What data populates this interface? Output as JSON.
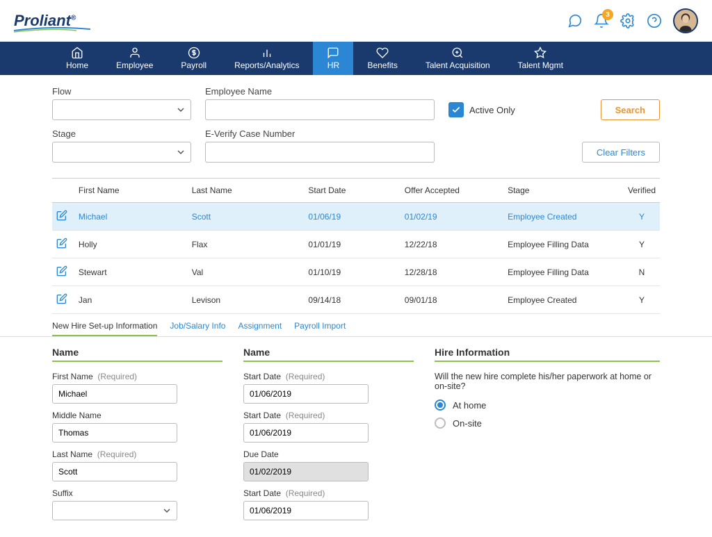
{
  "header": {
    "logo": "Proliant",
    "notification_count": "3"
  },
  "nav": [
    {
      "label": "Home"
    },
    {
      "label": "Employee"
    },
    {
      "label": "Payroll"
    },
    {
      "label": "Reports/Analytics"
    },
    {
      "label": "HR"
    },
    {
      "label": "Benefits"
    },
    {
      "label": "Talent Acquisition"
    },
    {
      "label": "Talent Mgmt"
    }
  ],
  "filters": {
    "flow_label": "Flow",
    "employee_name_label": "Employee Name",
    "active_only_label": "Active Only",
    "stage_label": "Stage",
    "everify_label": "E-Verify Case Number",
    "search_btn": "Search",
    "clear_btn": "Clear Filters"
  },
  "table": {
    "headers": {
      "first_name": "First Name",
      "last_name": "Last Name",
      "start_date": "Start Date",
      "offer_accepted": "Offer Accepted",
      "stage": "Stage",
      "verified": "Verified"
    },
    "rows": [
      {
        "first_name": "Michael",
        "last_name": "Scott",
        "start_date": "01/06/19",
        "offer_accepted": "01/02/19",
        "stage": "Employee Created",
        "verified": "Y",
        "selected": true
      },
      {
        "first_name": "Holly",
        "last_name": "Flax",
        "start_date": "01/01/19",
        "offer_accepted": "12/22/18",
        "stage": "Employee Filling Data",
        "verified": "Y"
      },
      {
        "first_name": "Stewart",
        "last_name": "Val",
        "start_date": "01/10/19",
        "offer_accepted": "12/28/18",
        "stage": "Employee Filling Data",
        "verified": "N"
      },
      {
        "first_name": "Jan",
        "last_name": "Levison",
        "start_date": "09/14/18",
        "offer_accepted": "09/01/18",
        "stage": "Employee Created",
        "verified": "Y"
      }
    ]
  },
  "tabs": [
    "New Hire Set-up Information",
    "Job/Salary Info",
    "Assignment",
    "Payroll Import"
  ],
  "detail": {
    "col1": {
      "title": "Name",
      "first_name_label": "First Name",
      "first_name_value": "Michael",
      "middle_name_label": "Middle Name",
      "middle_name_value": "Thomas",
      "last_name_label": "Last Name",
      "last_name_value": "Scott",
      "suffix_label": "Suffix",
      "required": "(Required)"
    },
    "col2": {
      "title": "Name",
      "start_date_label": "Start Date",
      "start_date_value": "01/06/2019",
      "start_date2_label": "Start Date",
      "start_date2_value": "01/06/2019",
      "due_date_label": "Due Date",
      "due_date_value": "01/02/2019",
      "start_date3_label": "Start Date",
      "start_date3_value": "01/06/2019",
      "required": "(Required)"
    },
    "col3": {
      "title": "Hire Information",
      "question": "Will the new hire complete his/her paperwork at home or on-site?",
      "opt1": "At home",
      "opt2": "On-site"
    }
  }
}
